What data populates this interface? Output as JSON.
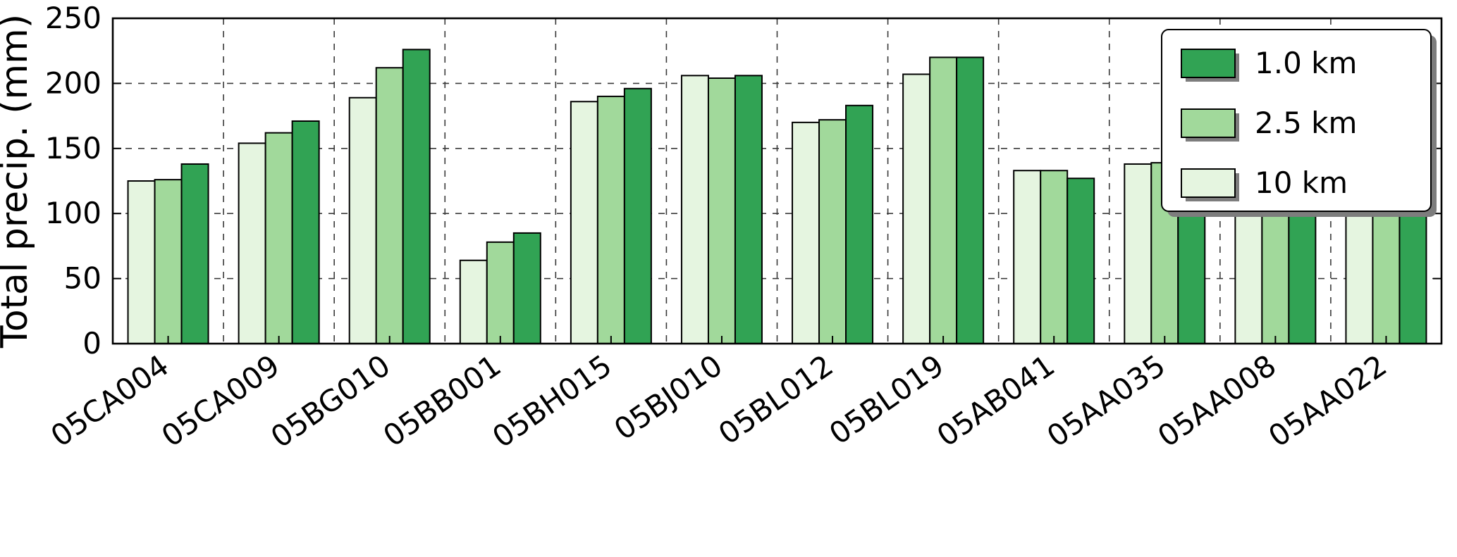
{
  "chart_data": {
    "type": "bar",
    "title": "",
    "xlabel": "",
    "ylabel": "Total precip. (mm)",
    "ylim": [
      0,
      250
    ],
    "yticks": [
      0,
      50,
      100,
      150,
      200,
      250
    ],
    "grid": true,
    "legend_position": "upper right",
    "legend_order": [
      "1.0 km",
      "2.5 km",
      "10 km"
    ],
    "categories": [
      "05CA004",
      "05CA009",
      "05BG010",
      "05BB001",
      "05BH015",
      "05BJ010",
      "05BL012",
      "05BL019",
      "05AB041",
      "05AA035",
      "05AA008",
      "05AA022"
    ],
    "series": [
      {
        "name": "10 km",
        "color": "#e5f5e0",
        "values": [
          125,
          154,
          189,
          64,
          186,
          206,
          170,
          207,
          133,
          138,
          114,
          119
        ]
      },
      {
        "name": "2.5 km",
        "color": "#a1d99b",
        "values": [
          126,
          162,
          212,
          78,
          190,
          204,
          172,
          220,
          133,
          139,
          108,
          113
        ]
      },
      {
        "name": "1.0 km",
        "color": "#31a354",
        "values": [
          138,
          171,
          226,
          85,
          196,
          206,
          183,
          220,
          127,
          143,
          110,
          117
        ]
      }
    ]
  }
}
